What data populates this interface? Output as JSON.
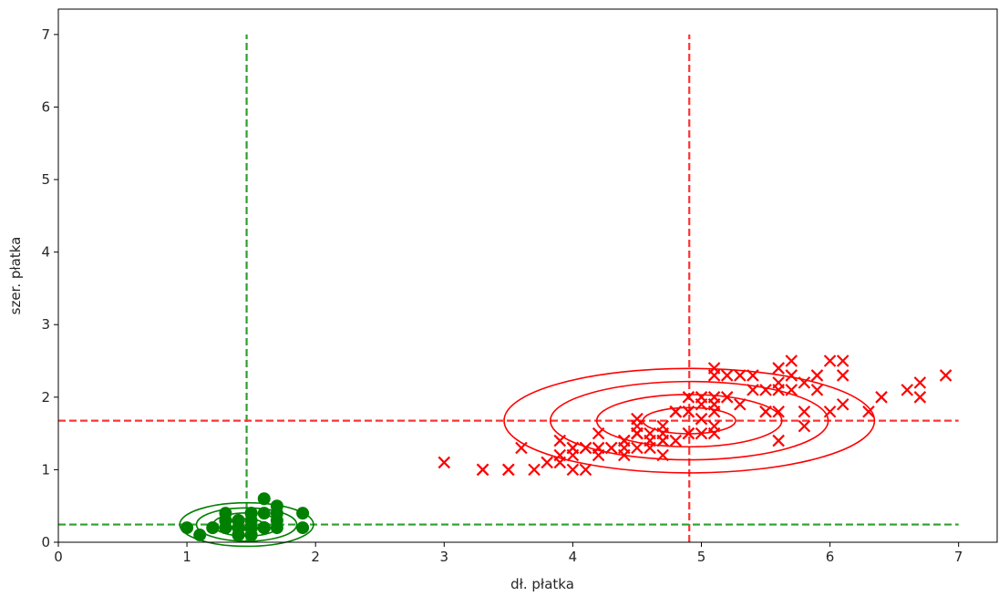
{
  "chart_data": {
    "type": "scatter",
    "xlabel": "dł. płatka",
    "ylabel": "szer. płatka",
    "xlim": [
      0,
      7.3
    ],
    "ylim": [
      0,
      7.35
    ],
    "xticks": [
      0,
      1,
      2,
      3,
      4,
      5,
      6,
      7
    ],
    "yticks": [
      0,
      1,
      2,
      3,
      4,
      5,
      6,
      7
    ],
    "grid": false,
    "series": [
      {
        "marker": "circle",
        "color": "#008000",
        "points": [
          [
            1.4,
            0.2
          ],
          [
            1.4,
            0.2
          ],
          [
            1.3,
            0.2
          ],
          [
            1.5,
            0.2
          ],
          [
            1.4,
            0.2
          ],
          [
            1.7,
            0.4
          ],
          [
            1.4,
            0.3
          ],
          [
            1.5,
            0.2
          ],
          [
            1.4,
            0.2
          ],
          [
            1.5,
            0.1
          ],
          [
            1.5,
            0.2
          ],
          [
            1.6,
            0.2
          ],
          [
            1.4,
            0.1
          ],
          [
            1.1,
            0.1
          ],
          [
            1.2,
            0.2
          ],
          [
            1.5,
            0.4
          ],
          [
            1.3,
            0.4
          ],
          [
            1.4,
            0.3
          ],
          [
            1.7,
            0.3
          ],
          [
            1.5,
            0.3
          ],
          [
            1.7,
            0.2
          ],
          [
            1.5,
            0.4
          ],
          [
            1.0,
            0.2
          ],
          [
            1.7,
            0.5
          ],
          [
            1.9,
            0.2
          ],
          [
            1.6,
            0.2
          ],
          [
            1.6,
            0.4
          ],
          [
            1.5,
            0.2
          ],
          [
            1.4,
            0.2
          ],
          [
            1.6,
            0.2
          ],
          [
            1.6,
            0.2
          ],
          [
            1.5,
            0.4
          ],
          [
            1.5,
            0.1
          ],
          [
            1.4,
            0.2
          ],
          [
            1.5,
            0.2
          ],
          [
            1.2,
            0.2
          ],
          [
            1.3,
            0.2
          ],
          [
            1.4,
            0.1
          ],
          [
            1.3,
            0.2
          ],
          [
            1.5,
            0.2
          ],
          [
            1.3,
            0.3
          ],
          [
            1.3,
            0.3
          ],
          [
            1.3,
            0.2
          ],
          [
            1.6,
            0.6
          ],
          [
            1.9,
            0.4
          ],
          [
            1.4,
            0.3
          ],
          [
            1.6,
            0.2
          ],
          [
            1.4,
            0.2
          ],
          [
            1.5,
            0.2
          ],
          [
            1.4,
            0.2
          ]
        ]
      },
      {
        "marker": "x",
        "color": "#ff0000",
        "points": [
          [
            4.7,
            1.4
          ],
          [
            4.5,
            1.5
          ],
          [
            4.9,
            1.5
          ],
          [
            4.0,
            1.3
          ],
          [
            4.6,
            1.5
          ],
          [
            4.5,
            1.3
          ],
          [
            4.7,
            1.6
          ],
          [
            3.3,
            1.0
          ],
          [
            4.6,
            1.3
          ],
          [
            3.9,
            1.4
          ],
          [
            3.5,
            1.0
          ],
          [
            4.2,
            1.5
          ],
          [
            4.0,
            1.0
          ],
          [
            4.7,
            1.4
          ],
          [
            3.6,
            1.3
          ],
          [
            4.4,
            1.4
          ],
          [
            4.5,
            1.5
          ],
          [
            4.1,
            1.0
          ],
          [
            4.5,
            1.5
          ],
          [
            3.9,
            1.1
          ],
          [
            4.8,
            1.8
          ],
          [
            4.0,
            1.3
          ],
          [
            4.9,
            1.5
          ],
          [
            4.7,
            1.2
          ],
          [
            4.3,
            1.3
          ],
          [
            4.4,
            1.4
          ],
          [
            4.8,
            1.4
          ],
          [
            5.0,
            1.7
          ],
          [
            4.5,
            1.5
          ],
          [
            3.5,
            1.0
          ],
          [
            3.8,
            1.1
          ],
          [
            3.7,
            1.0
          ],
          [
            3.9,
            1.2
          ],
          [
            5.1,
            1.6
          ],
          [
            4.5,
            1.5
          ],
          [
            4.5,
            1.6
          ],
          [
            4.7,
            1.5
          ],
          [
            4.4,
            1.3
          ],
          [
            4.1,
            1.3
          ],
          [
            4.0,
            1.3
          ],
          [
            4.4,
            1.2
          ],
          [
            4.6,
            1.4
          ],
          [
            4.0,
            1.2
          ],
          [
            3.3,
            1.0
          ],
          [
            4.2,
            1.3
          ],
          [
            4.2,
            1.2
          ],
          [
            4.2,
            1.3
          ],
          [
            4.3,
            1.3
          ],
          [
            3.0,
            1.1
          ],
          [
            4.1,
            1.3
          ],
          [
            6.0,
            2.5
          ],
          [
            5.1,
            1.9
          ],
          [
            5.9,
            2.1
          ],
          [
            5.6,
            1.8
          ],
          [
            5.8,
            2.2
          ],
          [
            6.6,
            2.1
          ],
          [
            4.5,
            1.7
          ],
          [
            6.3,
            1.8
          ],
          [
            5.8,
            1.8
          ],
          [
            6.1,
            2.5
          ],
          [
            5.1,
            2.0
          ],
          [
            5.3,
            1.9
          ],
          [
            5.5,
            2.1
          ],
          [
            5.0,
            2.0
          ],
          [
            5.1,
            2.4
          ],
          [
            5.3,
            2.3
          ],
          [
            5.5,
            1.8
          ],
          [
            6.7,
            2.2
          ],
          [
            6.9,
            2.3
          ],
          [
            5.0,
            1.5
          ],
          [
            5.7,
            2.3
          ],
          [
            4.9,
            2.0
          ],
          [
            6.7,
            2.0
          ],
          [
            4.9,
            1.8
          ],
          [
            5.7,
            2.1
          ],
          [
            6.0,
            1.8
          ],
          [
            4.8,
            1.8
          ],
          [
            4.9,
            1.8
          ],
          [
            5.6,
            2.1
          ],
          [
            5.8,
            1.6
          ],
          [
            6.1,
            1.9
          ],
          [
            6.4,
            2.0
          ],
          [
            5.6,
            2.2
          ],
          [
            5.1,
            1.5
          ],
          [
            5.6,
            1.4
          ],
          [
            6.1,
            2.3
          ],
          [
            5.6,
            2.4
          ],
          [
            5.5,
            1.8
          ],
          [
            4.8,
            1.8
          ],
          [
            5.4,
            2.1
          ],
          [
            5.6,
            2.4
          ],
          [
            5.1,
            2.3
          ],
          [
            5.1,
            1.9
          ],
          [
            5.9,
            2.3
          ],
          [
            5.7,
            2.5
          ],
          [
            5.2,
            2.3
          ],
          [
            5.0,
            1.9
          ],
          [
            5.2,
            2.0
          ],
          [
            5.4,
            2.3
          ],
          [
            5.1,
            1.8
          ]
        ]
      }
    ],
    "ellipses": [
      {
        "color": "#ff0000",
        "cx": 4.906,
        "cy": 1.676,
        "rx": [
          0.36,
          0.72,
          1.08,
          1.44
        ],
        "ry": [
          0.18,
          0.36,
          0.54,
          0.72
        ]
      },
      {
        "color": "#008000",
        "cx": 1.464,
        "cy": 0.244,
        "rx": [
          0.13,
          0.26,
          0.39,
          0.52
        ],
        "ry": [
          0.08,
          0.16,
          0.23,
          0.3
        ]
      }
    ],
    "reference_lines": [
      {
        "orientation": "vertical",
        "x": 1.464,
        "from": 0,
        "to": 7,
        "color": "#2ca02c",
        "style": "dashed"
      },
      {
        "orientation": "vertical",
        "x": 4.906,
        "from": 0,
        "to": 7,
        "color": "#ff3333",
        "style": "dashed"
      },
      {
        "orientation": "horizontal",
        "y": 1.676,
        "from": 0,
        "to": 7,
        "color": "#ff3333",
        "style": "dashed"
      },
      {
        "orientation": "horizontal",
        "y": 0.244,
        "from": 0,
        "to": 7,
        "color": "#2ca02c",
        "style": "dashed"
      }
    ]
  }
}
